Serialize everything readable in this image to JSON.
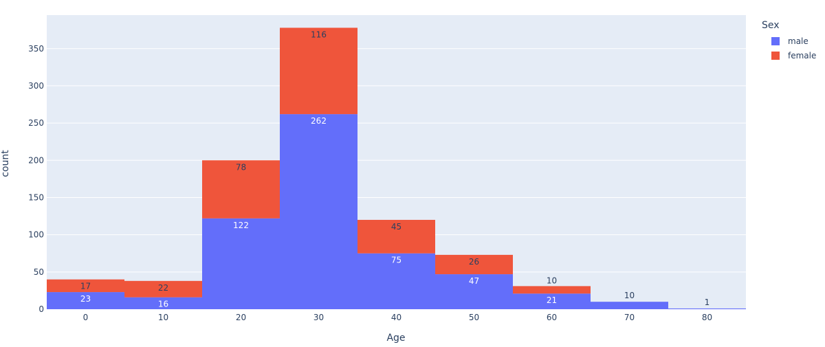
{
  "chart_data": {
    "type": "bar",
    "barmode": "stack",
    "xlabel": "Age",
    "ylabel": "count",
    "x_tick_labels": [
      "0",
      "10",
      "20",
      "30",
      "40",
      "50",
      "60",
      "70",
      "80"
    ],
    "y_tick_labels": [
      "0",
      "50",
      "100",
      "150",
      "200",
      "250",
      "300",
      "350"
    ],
    "x_bins": [
      [
        -5,
        5
      ],
      [
        5,
        15
      ],
      [
        15,
        25
      ],
      [
        25,
        35
      ],
      [
        35,
        45
      ],
      [
        45,
        55
      ],
      [
        55,
        65
      ],
      [
        65,
        75
      ],
      [
        75,
        85
      ]
    ],
    "xlim": [
      -5,
      85
    ],
    "ylim": [
      0,
      395
    ],
    "grid": true,
    "legend_title": "Sex",
    "legend_position": "top-right",
    "plot_background": "#E5ECF6",
    "series": [
      {
        "name": "male",
        "color": "#636EFA",
        "values": [
          23,
          16,
          122,
          262,
          75,
          47,
          21,
          10,
          1
        ]
      },
      {
        "name": "female",
        "color": "#EF553B",
        "values": [
          17,
          22,
          78,
          116,
          45,
          26,
          10,
          0,
          0
        ]
      }
    ]
  }
}
